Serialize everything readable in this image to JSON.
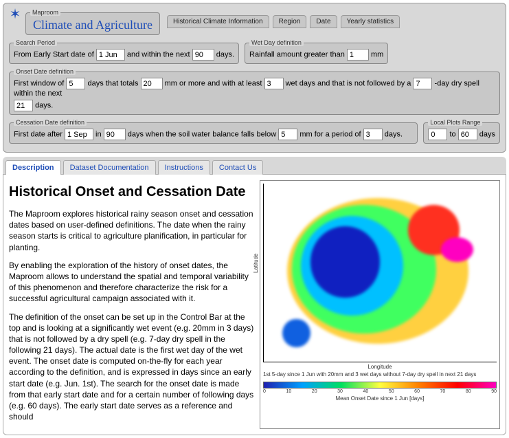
{
  "maproom": {
    "legend": "Maproom",
    "title": "Climate and Agriculture"
  },
  "navPills": {
    "hist": "Historical Climate Information",
    "region": "Region",
    "date": "Date",
    "yearly": "Yearly statistics"
  },
  "searchPeriod": {
    "legend": "Search Period",
    "prefix": "From Early Start date of",
    "startDate": "1 Jun",
    "mid": "and within the next",
    "days": "90",
    "suffix": "days."
  },
  "wetDay": {
    "legend": "Wet Day definition",
    "prefix": "Rainfall amount greater than",
    "amount": "1",
    "unit": "mm"
  },
  "onsetDef": {
    "legend": "Onset Date definition",
    "t1": "First window of",
    "window": "5",
    "t2": "days that totals",
    "total": "20",
    "t3": "mm or more and with at least",
    "wetdays": "3",
    "t4": "wet days and that is not followed by a",
    "dryspell": "7",
    "t5": "-day dry spell within the next",
    "nextdays": "21",
    "t6": "days."
  },
  "cessDef": {
    "legend": "Cessation Date definition",
    "t1": "First date after",
    "afterDate": "1 Sep",
    "t2": "in",
    "inDays": "90",
    "t3": "days when the soil water balance falls below",
    "below": "5",
    "t4": "mm for a period of",
    "period": "3",
    "t5": "days."
  },
  "plotRange": {
    "legend": "Local Plots Range",
    "from": "0",
    "to_lbl": "to",
    "to": "60",
    "unit": "days"
  },
  "tabs": {
    "description": "Description",
    "dataset": "Dataset Documentation",
    "instructions": "Instructions",
    "contact": "Contact Us"
  },
  "article": {
    "heading": "Historical Onset and Cessation Date",
    "p1": "The Maproom explores historical rainy season onset and cessation dates based on user-defined definitions. The date when the rainy season starts is critical to agriculture planification, in particular for planting.",
    "p2": "By enabling the exploration of the history of onset dates, the Maproom allows to understand the spatial and temporal variability of this phenomenon and therefore characterize the risk for a successful agricultural campaign associated with it.",
    "p3": "The definition of the onset can be set up in the Control Bar at the top and is looking at a significantly wet event (e.g. 20mm in 3 days) that is not followed by a dry spell (e.g. 7-day dry spell in the following 21 days). The actual date is the first wet day of the wet event. The onset date is computed on-the-fly for each year according to the definition, and is expressed in days since an early start date (e.g. Jun. 1st). The search for the onset date is made from that early start date and for a certain number of following days (e.g. 60 days). The early start date serves as a reference and should"
  },
  "map": {
    "ylabel": "Latitude",
    "xlabel": "Longitude",
    "caption": "1st 5-day since 1 Jun with 20mm and 3 wet days without 7-day dry spell in next 21 days",
    "cbar_title": "Mean Onset Date since 1 Jun [days]",
    "ticks": [
      "0",
      "10",
      "20",
      "30",
      "40",
      "50",
      "60",
      "70",
      "80",
      "90"
    ],
    "blobs": [
      {
        "l": "10%",
        "t": "8%",
        "w": "78%",
        "h": "82%",
        "bg": "#ffd040"
      },
      {
        "l": "12%",
        "t": "12%",
        "w": "62%",
        "h": "72%",
        "bg": "#40ff60"
      },
      {
        "l": "16%",
        "t": "18%",
        "w": "44%",
        "h": "56%",
        "bg": "#00c0ff"
      },
      {
        "l": "20%",
        "t": "24%",
        "w": "30%",
        "h": "40%",
        "bg": "#1020c0"
      },
      {
        "l": "62%",
        "t": "12%",
        "w": "22%",
        "h": "28%",
        "bg": "#ff3020"
      },
      {
        "l": "76%",
        "t": "30%",
        "w": "14%",
        "h": "14%",
        "bg": "#ff00c0"
      },
      {
        "l": "8%",
        "t": "76%",
        "w": "12%",
        "h": "16%",
        "bg": "#1060e0"
      }
    ]
  }
}
